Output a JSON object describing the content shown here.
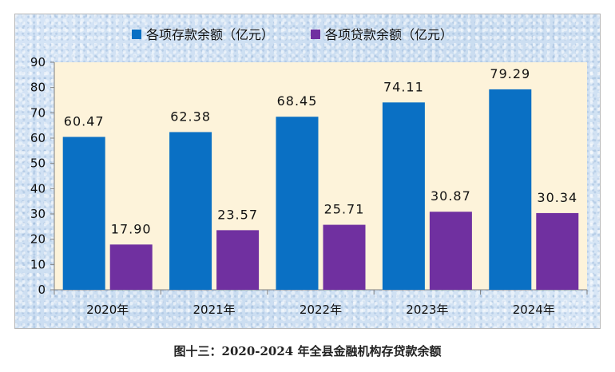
{
  "caption": "图十三：2020-2024 年全县金融机构存贷款余额",
  "chart_data": {
    "type": "bar",
    "categories": [
      "2020年",
      "2021年",
      "2022年",
      "2023年",
      "2024年"
    ],
    "series": [
      {
        "name": "各项存款余额（亿元）",
        "color": "#0a70c4",
        "values": [
          60.47,
          62.38,
          68.45,
          74.11,
          79.29
        ],
        "labels": [
          "60.47",
          "62.38",
          "68.45",
          "74.11",
          "79.29"
        ]
      },
      {
        "name": "各项贷款余额（亿元）",
        "color": "#7030a0",
        "values": [
          17.9,
          23.57,
          25.71,
          30.87,
          30.34
        ],
        "labels": [
          "17.90",
          "23.57",
          "25.71",
          "30.87",
          "30.34"
        ]
      }
    ],
    "ylim": [
      0,
      90
    ],
    "yticks": [
      0,
      10,
      20,
      30,
      40,
      50,
      60,
      70,
      80,
      90
    ],
    "grid": false,
    "legend": "top",
    "plot_background": "#fdf3da",
    "title": "",
    "xlabel": "",
    "ylabel": ""
  }
}
